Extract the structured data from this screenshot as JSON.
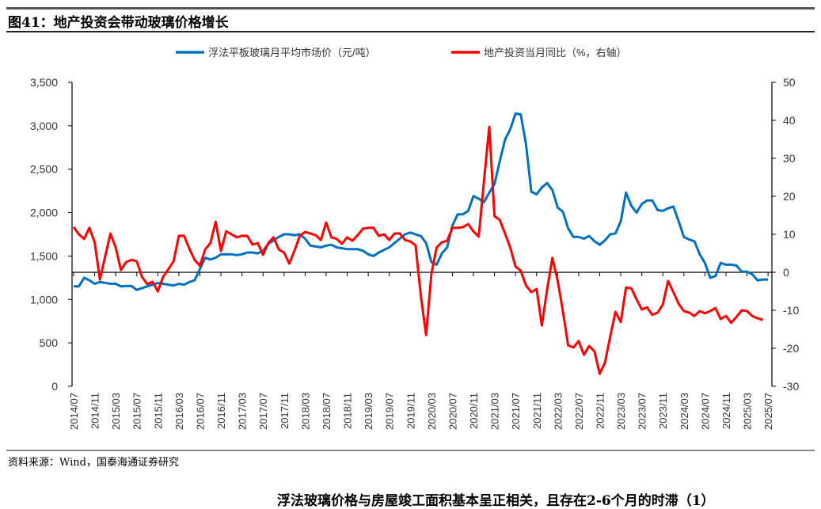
{
  "header": {
    "title": "图41：地产投资会带动玻璃价格增长"
  },
  "footer": {
    "source": "资料来源：Wind，国泰海通证券研究",
    "next_text": "浮法玻璃价格与房屋竣工面积基本呈正相关，且存在2-6个月的时滞（1）"
  },
  "chart_data": {
    "type": "line",
    "title": "地产投资会带动玻璃价格增长",
    "legend_position": "top",
    "colors": {
      "price": "#0070C0",
      "invest": "#FF0000"
    },
    "x_start": "2014/07",
    "x_tick_labels": [
      "2014/07",
      "2014/11",
      "2015/03",
      "2015/07",
      "2015/11",
      "2016/03",
      "2016/07",
      "2016/11",
      "2017/03",
      "2017/07",
      "2017/11",
      "2018/03",
      "2018/07",
      "2018/11",
      "2019/03",
      "2019/07",
      "2019/11",
      "2020/03",
      "2020/07",
      "2020/11",
      "2021/03",
      "2021/07",
      "2021/11",
      "2022/03",
      "2022/07",
      "2022/11",
      "2023/03",
      "2023/07",
      "2023/11",
      "2024/03",
      "2024/07",
      "2024/11",
      "2025/03",
      "2025/07"
    ],
    "y_left": {
      "min": 0,
      "max": 3500,
      "step": 500,
      "tick_labels": [
        "0",
        "500",
        "1,000",
        "1,500",
        "2,000",
        "2,500",
        "3,000",
        "3,500"
      ]
    },
    "y_right": {
      "min": -30,
      "max": 50,
      "step": 10,
      "tick_labels": [
        "-30",
        "-20",
        "-10",
        "0",
        "10",
        "20",
        "30",
        "40",
        "50"
      ]
    },
    "series": [
      {
        "name": "浮法平板玻璃月平均市场价（元/吨）",
        "axis": "left",
        "values": [
          1150,
          1150,
          1250,
          1220,
          1180,
          1200,
          1190,
          1180,
          1180,
          1150,
          1155,
          1155,
          1110,
          1130,
          1150,
          1170,
          1190,
          1180,
          1170,
          1160,
          1180,
          1170,
          1200,
          1220,
          1350,
          1480,
          1460,
          1480,
          1520,
          1520,
          1520,
          1510,
          1520,
          1540,
          1540,
          1530,
          1560,
          1640,
          1680,
          1720,
          1750,
          1750,
          1740,
          1750,
          1700,
          1620,
          1610,
          1600,
          1620,
          1630,
          1600,
          1590,
          1580,
          1580,
          1580,
          1560,
          1520,
          1500,
          1540,
          1570,
          1600,
          1650,
          1700,
          1750,
          1770,
          1750,
          1730,
          1650,
          1430,
          1400,
          1530,
          1600,
          1850,
          1980,
          1980,
          2020,
          2190,
          2160,
          2120,
          2230,
          2330,
          2590,
          2840,
          2960,
          3140,
          3130,
          2780,
          2240,
          2210,
          2290,
          2340,
          2260,
          2060,
          2010,
          1820,
          1720,
          1720,
          1700,
          1730,
          1670,
          1630,
          1680,
          1750,
          1760,
          1900,
          2230,
          2080,
          2000,
          2100,
          2140,
          2140,
          2030,
          2020,
          2050,
          2070,
          1900,
          1720,
          1690,
          1670,
          1520,
          1420,
          1250,
          1270,
          1420,
          1400,
          1400,
          1390,
          1320,
          1320,
          1290,
          1220,
          1230,
          1230
        ]
      },
      {
        "name": "地产投资当月同比（%，右轴）",
        "axis": "right",
        "values": [
          11.9,
          10,
          8.8,
          11.7,
          7.9,
          -1.9,
          4.2,
          10.2,
          6.5,
          0.6,
          2.7,
          3.3,
          2.9,
          -1.2,
          -3.1,
          -2.5,
          -5,
          -1.2,
          0.8,
          2.9,
          9.6,
          9.6,
          6.2,
          3.3,
          1.7,
          6,
          7.7,
          13.3,
          5.6,
          10.8,
          10,
          9.2,
          9.6,
          9.6,
          7.3,
          7.7,
          4.6,
          7.7,
          9.2,
          6,
          5.2,
          2.3,
          5.8,
          9.6,
          10.6,
          10.2,
          9.8,
          8.5,
          13.1,
          9.2,
          8.8,
          7.5,
          9.2,
          8.3,
          9.8,
          11.5,
          11.7,
          11.7,
          9.6,
          10,
          8.5,
          10.2,
          10.2,
          8.5,
          8.1,
          7.1,
          -6.2,
          -16.5,
          -0.4,
          6.5,
          7.9,
          8.3,
          11.7,
          11.7,
          11.9,
          12.7,
          10.8,
          9.4,
          24,
          38.3,
          14.8,
          13.8,
          10.2,
          6.5,
          1.5,
          0.4,
          -3.5,
          -5.2,
          -4.4,
          -14,
          -4.6,
          3.8,
          -2.1,
          -10.2,
          -19.2,
          -19.8,
          -18.1,
          -21.7,
          -19.4,
          -20.8,
          -26.7,
          -23.8,
          -16.9,
          -10.4,
          -13.1,
          -4,
          -4.2,
          -7.1,
          -9.8,
          -9.2,
          -11.2,
          -10.6,
          -8.5,
          -2.3,
          -5.2,
          -8.3,
          -10.2,
          -10.6,
          -11.5,
          -10.2,
          -10.8,
          -10.2,
          -9.4,
          -12.3,
          -11.5,
          -13.3,
          -11.7,
          -10,
          -10.2,
          -11.5,
          -12.1,
          -12.5
        ]
      }
    ]
  }
}
